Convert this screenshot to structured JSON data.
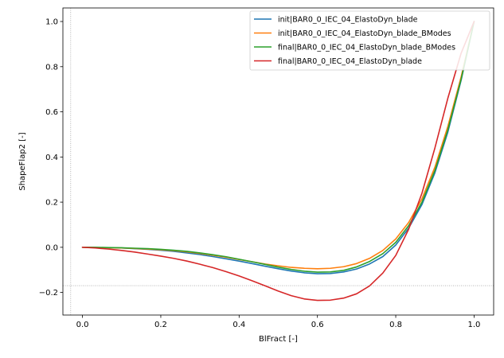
{
  "chart_data": {
    "type": "line",
    "xlabel": "BlFract [-]",
    "ylabel": "ShapeFlap2 [-]",
    "xlim": [
      -0.05,
      1.05
    ],
    "ylim": [
      -0.3,
      1.06
    ],
    "xticks": [
      0.0,
      0.2,
      0.4,
      0.6,
      0.8,
      1.0
    ],
    "xtick_labels": [
      "0.0",
      "0.2",
      "0.4",
      "0.6",
      "0.8",
      "1.0"
    ],
    "yticks": [
      -0.2,
      0.0,
      0.2,
      0.4,
      0.6,
      0.8,
      1.0
    ],
    "ytick_labels": [
      "−0.2",
      "0.0",
      "0.2",
      "0.4",
      "0.6",
      "0.8",
      "1.0"
    ],
    "grid": false,
    "legend_position": "top-right",
    "reference_lines": {
      "vertical_x": -0.03,
      "horizontal_y": -0.17
    },
    "x": [
      0.0,
      0.033,
      0.067,
      0.1,
      0.133,
      0.167,
      0.2,
      0.233,
      0.267,
      0.3,
      0.333,
      0.367,
      0.4,
      0.433,
      0.467,
      0.5,
      0.533,
      0.567,
      0.6,
      0.633,
      0.667,
      0.7,
      0.733,
      0.767,
      0.8,
      0.833,
      0.867,
      0.9,
      0.933,
      0.967,
      1.0
    ],
    "series": [
      {
        "name": "init|BAR0_0_IEC_04_ElastoDyn_blade",
        "color": "#1f77b4",
        "values": [
          0.0,
          -0.001,
          -0.002,
          -0.003,
          -0.006,
          -0.009,
          -0.013,
          -0.018,
          -0.025,
          -0.032,
          -0.041,
          -0.051,
          -0.061,
          -0.072,
          -0.084,
          -0.095,
          -0.105,
          -0.113,
          -0.117,
          -0.116,
          -0.109,
          -0.096,
          -0.074,
          -0.041,
          0.01,
          0.085,
          0.19,
          0.33,
          0.51,
          0.74,
          1.0
        ]
      },
      {
        "name": "init|BAR0_0_IEC_04_ElastoDyn_blade_BModes",
        "color": "#ff7f0e",
        "values": [
          0.0,
          -0.001,
          -0.002,
          -0.003,
          -0.005,
          -0.008,
          -0.011,
          -0.015,
          -0.02,
          -0.027,
          -0.035,
          -0.044,
          -0.054,
          -0.064,
          -0.074,
          -0.082,
          -0.089,
          -0.093,
          -0.095,
          -0.093,
          -0.086,
          -0.072,
          -0.049,
          -0.014,
          0.037,
          0.11,
          0.215,
          0.355,
          0.535,
          0.755,
          1.0
        ]
      },
      {
        "name": "final|BAR0_0_IEC_04_ElastoDyn_blade_BModes",
        "color": "#2ca02c",
        "values": [
          0.0,
          0.0,
          -0.001,
          -0.002,
          -0.004,
          -0.006,
          -0.009,
          -0.013,
          -0.018,
          -0.025,
          -0.033,
          -0.042,
          -0.053,
          -0.064,
          -0.076,
          -0.088,
          -0.098,
          -0.106,
          -0.11,
          -0.109,
          -0.102,
          -0.087,
          -0.063,
          -0.028,
          0.022,
          0.096,
          0.2,
          0.34,
          0.52,
          0.745,
          1.0
        ]
      },
      {
        "name": "final|BAR0_0_IEC_04_ElastoDyn_blade",
        "color": "#d62728",
        "values": [
          0.0,
          -0.003,
          -0.008,
          -0.014,
          -0.021,
          -0.03,
          -0.039,
          -0.049,
          -0.061,
          -0.075,
          -0.09,
          -0.108,
          -0.127,
          -0.148,
          -0.171,
          -0.194,
          -0.214,
          -0.229,
          -0.235,
          -0.234,
          -0.225,
          -0.206,
          -0.171,
          -0.114,
          -0.036,
          0.08,
          0.24,
          0.44,
          0.66,
          0.86,
          1.0
        ]
      }
    ]
  }
}
